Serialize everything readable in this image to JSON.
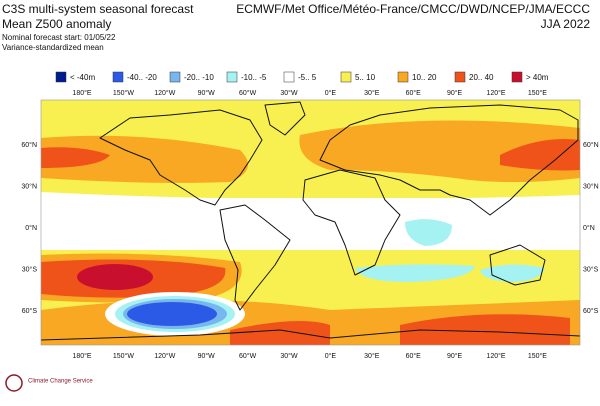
{
  "header": {
    "title": "C3S multi-system seasonal forecast",
    "subtitle": "Mean Z500 anomaly",
    "start": "Nominal forecast start: 01/05/22",
    "method": "Variance-standardized mean",
    "centres": "ECMWF/Met Office/Météo-France/CMCC/DWD/NCEP/JMA/ECCC",
    "season": "JJA 2022"
  },
  "legend": [
    {
      "label": "< -40m",
      "color": "#001a8f"
    },
    {
      "label": "-40.. -20",
      "color": "#2b5ae6"
    },
    {
      "label": "-20.. -10",
      "color": "#78b6f0"
    },
    {
      "label": "-10.. -5",
      "color": "#a4f2f2"
    },
    {
      "label": "-5.. 5",
      "color": "#ffffff"
    },
    {
      "label": "5.. 10",
      "color": "#f8f050"
    },
    {
      "label": "10.. 20",
      "color": "#f8a823"
    },
    {
      "label": "20.. 40",
      "color": "#f0531a"
    },
    {
      "label": "> 40m",
      "color": "#c8102e"
    }
  ],
  "map": {
    "longitudes": [
      "180°E",
      "150°W",
      "120°W",
      "90°W",
      "60°W",
      "30°W",
      "0°E",
      "30°E",
      "60°E",
      "90°E",
      "120°E",
      "150°E"
    ],
    "latitudes": [
      "60°N",
      "30°N",
      "0°N",
      "30°S",
      "60°S"
    ]
  },
  "logo": {
    "text": "Climate Change Service"
  }
}
